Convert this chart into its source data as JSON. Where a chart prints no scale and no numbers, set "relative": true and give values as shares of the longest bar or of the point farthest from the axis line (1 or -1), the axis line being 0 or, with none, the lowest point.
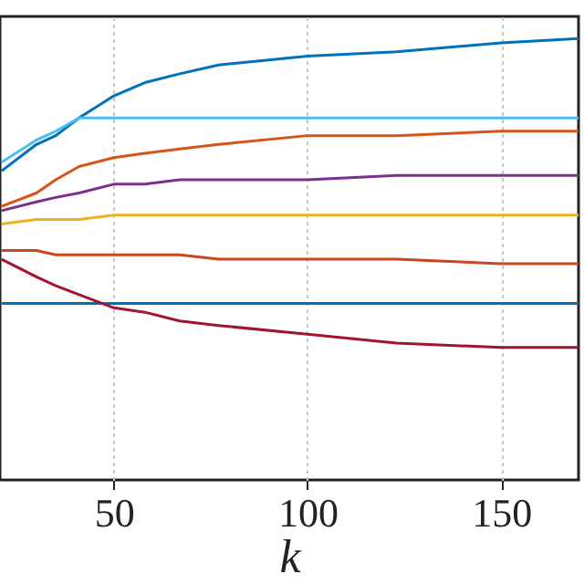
{
  "chart_data": {
    "type": "line",
    "xlabel": "k",
    "relative": true,
    "grid": "x",
    "tick_labels": "x",
    "line_style": "solid",
    "x": [
      21,
      30,
      35,
      41,
      50,
      58,
      67,
      77,
      100,
      123,
      150,
      170
    ],
    "xlim": [
      20.6,
      170
    ],
    "xticks": [
      50,
      100,
      150
    ],
    "series": [
      {
        "color": "#0072bd",
        "values": [
          0.7,
          0.76,
          0.78,
          0.82,
          0.87,
          0.9,
          0.92,
          0.94,
          0.96,
          0.97,
          0.99,
          1.0
        ]
      },
      {
        "color": "#4dbeee",
        "values": [
          0.72,
          0.77,
          0.79,
          0.82,
          0.82,
          0.82,
          0.82,
          0.82,
          0.82,
          0.82,
          0.82,
          0.82
        ]
      },
      {
        "color": "#d95319",
        "values": [
          0.62,
          0.65,
          0.68,
          0.71,
          0.73,
          0.74,
          0.75,
          0.76,
          0.78,
          0.78,
          0.79,
          0.79
        ]
      },
      {
        "color": "#7e2f8e",
        "values": [
          0.61,
          0.63,
          0.64,
          0.65,
          0.67,
          0.67,
          0.68,
          0.68,
          0.68,
          0.69,
          0.69,
          0.69
        ]
      },
      {
        "color": "#edb120",
        "values": [
          0.58,
          0.59,
          0.59,
          0.59,
          0.6,
          0.6,
          0.6,
          0.6,
          0.6,
          0.6,
          0.6,
          0.6
        ]
      },
      {
        "color": "#c9461e",
        "values": [
          0.52,
          0.52,
          0.51,
          0.51,
          0.51,
          0.51,
          0.51,
          0.5,
          0.5,
          0.5,
          0.49,
          0.49
        ]
      },
      {
        "color": "#0072bd",
        "values": [
          0.4,
          0.4,
          0.4,
          0.4,
          0.4,
          0.4,
          0.4,
          0.4,
          0.4,
          0.4,
          0.4,
          0.4
        ]
      },
      {
        "color": "#a2142f",
        "values": [
          0.5,
          0.46,
          0.44,
          0.42,
          0.39,
          0.38,
          0.36,
          0.35,
          0.33,
          0.31,
          0.3,
          0.3
        ]
      }
    ]
  }
}
